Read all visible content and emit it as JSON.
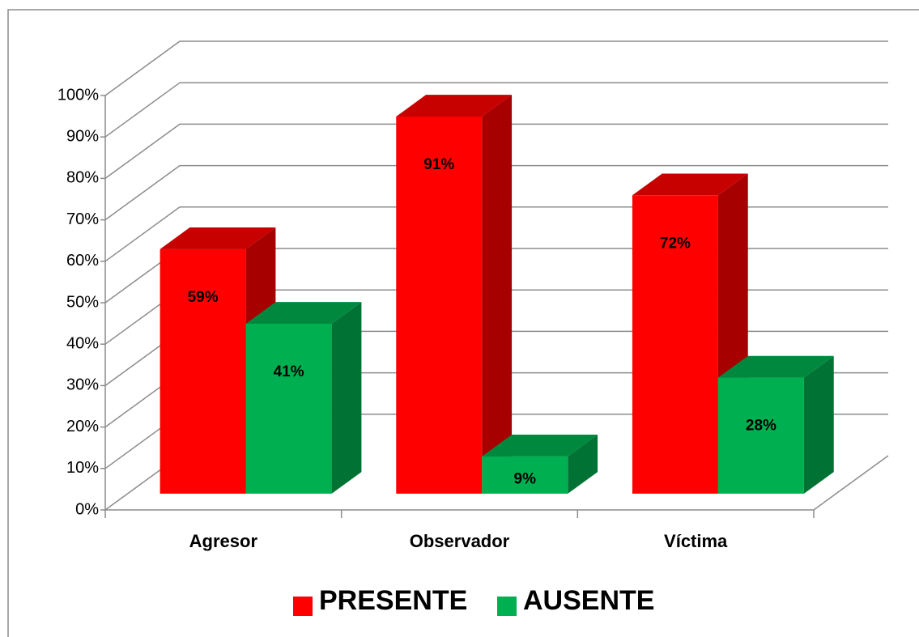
{
  "chart_data": {
    "type": "bar3d",
    "categories": [
      "Agresor",
      "Observador",
      "Víctima"
    ],
    "series": [
      {
        "name": "PRESENTE",
        "color": "#ff0000",
        "values": [
          59,
          91,
          72
        ],
        "value_labels": [
          "59%",
          "91%",
          "72%"
        ]
      },
      {
        "name": "AUSENTE",
        "color": "#00b050",
        "values": [
          41,
          9,
          28
        ],
        "value_labels": [
          "41%",
          "9%",
          "28%"
        ]
      }
    ],
    "ylim": [
      0,
      100
    ],
    "yticks": [
      {
        "value": 0,
        "label": "0%"
      },
      {
        "value": 10,
        "label": "10%"
      },
      {
        "value": 20,
        "label": "20%"
      },
      {
        "value": 30,
        "label": "30%"
      },
      {
        "value": 40,
        "label": "40%"
      },
      {
        "value": 50,
        "label": "50%"
      },
      {
        "value": 60,
        "label": "60%"
      },
      {
        "value": 70,
        "label": "70%"
      },
      {
        "value": 80,
        "label": "80%"
      },
      {
        "value": 90,
        "label": "90%"
      },
      {
        "value": 100,
        "label": "100%"
      }
    ],
    "grid": true,
    "legend": "bottom"
  }
}
